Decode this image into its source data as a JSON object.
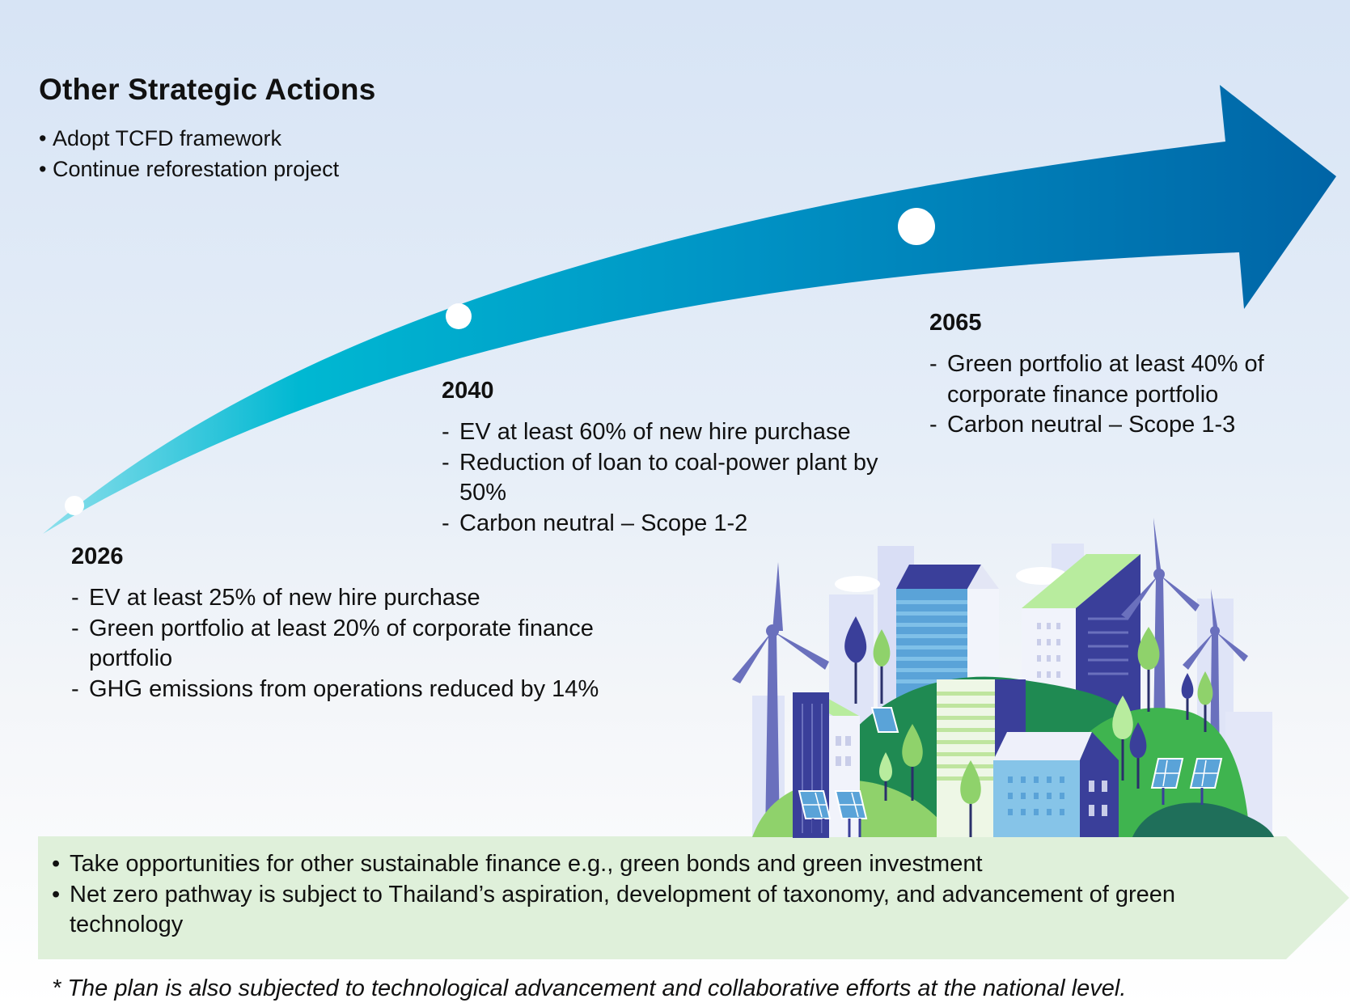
{
  "header": {
    "title": "Other Strategic Actions",
    "items": [
      "Adopt TCFD framework",
      "Continue reforestation project"
    ]
  },
  "milestones": [
    {
      "year": "2026",
      "items": [
        "EV at least 25% of new hire purchase",
        "Green portfolio at least 20% of corporate finance portfolio",
        "GHG emissions from operations reduced by 14%"
      ]
    },
    {
      "year": "2040",
      "items": [
        "EV at least 60% of new hire purchase",
        "Reduction of loan to coal-power plant by 50%",
        "Carbon neutral – Scope 1-2"
      ]
    },
    {
      "year": "2065",
      "items": [
        "Green portfolio at least 40% of corporate finance portfolio",
        "Carbon neutral – Scope 1-3"
      ]
    }
  ],
  "bottom_box": {
    "items": [
      "Take opportunities for other sustainable finance e.g., green bonds and green investment",
      "Net zero pathway is subject to Thailand’s aspiration, development of taxonomy, and advancement of green technology"
    ]
  },
  "footnote": "* The plan is also subjected to technological advancement and collaborative efforts at the national level.",
  "colors": {
    "arrow_start": "#6dd3e6",
    "arrow_mid": "#00b3cf",
    "arrow_end": "#0068a8",
    "green_box": "#dff0da",
    "city_navy": "#3a3f9a",
    "city_green": "#3fb44f"
  }
}
